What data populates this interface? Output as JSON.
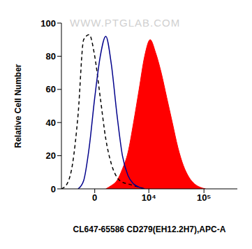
{
  "chart_data": {
    "type": "line",
    "xlabel": "CL647-65586 CD279(EH12.2H7),APC-A",
    "ylabel": "Relative Cell Number",
    "annotations": [
      "WWW.PTGLAB.COM"
    ],
    "x": [
      -3991,
      -3041,
      -2264,
      -1599,
      -1020,
      -497,
      0,
      497,
      1020,
      1599,
      2264,
      3041,
      3991,
      5151,
      6582,
      8365,
      10593,
      13388,
      16891,
      21293,
      26836,
      33812,
      42565,
      53628,
      67496,
      84979,
      107000
    ],
    "series": [
      {
        "color": "#000000",
        "line_style": "dashed",
        "type": "line",
        "values": [
          0,
          3,
          15,
          45,
          90,
          93,
          80,
          55,
          30,
          15,
          7,
          4,
          3,
          2,
          1,
          0,
          null,
          null,
          null,
          null,
          null,
          null,
          null,
          null,
          null,
          null,
          null
        ]
      },
      {
        "color": "#00008b",
        "line_style": "solid",
        "type": "line",
        "values": [
          null,
          null,
          null,
          0,
          5,
          25,
          55,
          80,
          92,
          75,
          45,
          20,
          8,
          3,
          1,
          0,
          null,
          null,
          null,
          null,
          null,
          null,
          null,
          null,
          null,
          null,
          null
        ]
      },
      {
        "color": "#ff0000",
        "line_style": "solid",
        "type": "area",
        "values": [
          null,
          null,
          null,
          null,
          null,
          null,
          null,
          null,
          0,
          2,
          5,
          12,
          22,
          40,
          60,
          80,
          90,
          82,
          70,
          55,
          40,
          25,
          14,
          7,
          3,
          1,
          0
        ]
      }
    ],
    "xlim": [
      -4000,
      400000
    ],
    "ylim": [
      0,
      100
    ],
    "xticks": [
      0,
      {
        "value": 10000,
        "label": "10⁴"
      },
      {
        "value": 100000,
        "label": "10⁵"
      }
    ],
    "yticks": [
      0,
      20,
      40,
      60,
      80,
      100
    ],
    "grid": false
  }
}
